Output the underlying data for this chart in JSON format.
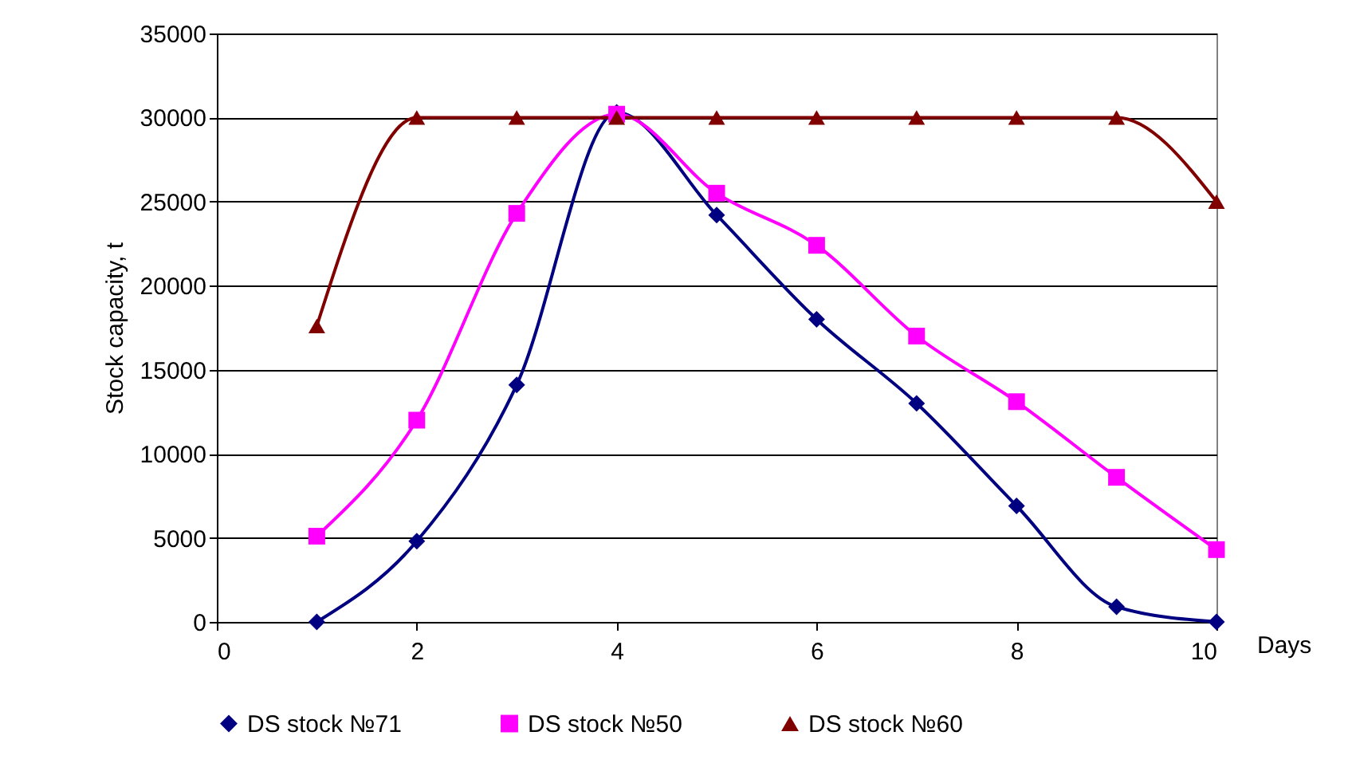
{
  "chart_data": {
    "type": "line",
    "xlabel": "Days",
    "ylabel": "Stock capacity, t",
    "x": [
      1,
      2,
      3,
      4,
      5,
      6,
      7,
      8,
      9,
      10
    ],
    "series": [
      {
        "name": "DS stock №71",
        "color": "#000080",
        "marker": "diamond",
        "values": [
          0,
          4800,
          14100,
          30300,
          24200,
          18000,
          13000,
          6900,
          900,
          0
        ]
      },
      {
        "name": "DS stock №50",
        "color": "#ff00ff",
        "marker": "square",
        "values": [
          5100,
          12000,
          24300,
          30200,
          25500,
          22400,
          17000,
          13100,
          8600,
          4300
        ]
      },
      {
        "name": "DS stock №60",
        "color": "#800000",
        "marker": "triangle",
        "values": [
          17600,
          30000,
          30000,
          30000,
          30000,
          30000,
          30000,
          30000,
          30000,
          25000
        ]
      }
    ],
    "xlim": [
      0,
      10
    ],
    "xticks": [
      0,
      2,
      4,
      6,
      8,
      10
    ],
    "ylim": [
      0,
      35000
    ],
    "yticks": [
      0,
      5000,
      10000,
      15000,
      20000,
      25000,
      30000,
      35000
    ],
    "grid": "y",
    "legend": "bottom",
    "line_style": "solid"
  }
}
